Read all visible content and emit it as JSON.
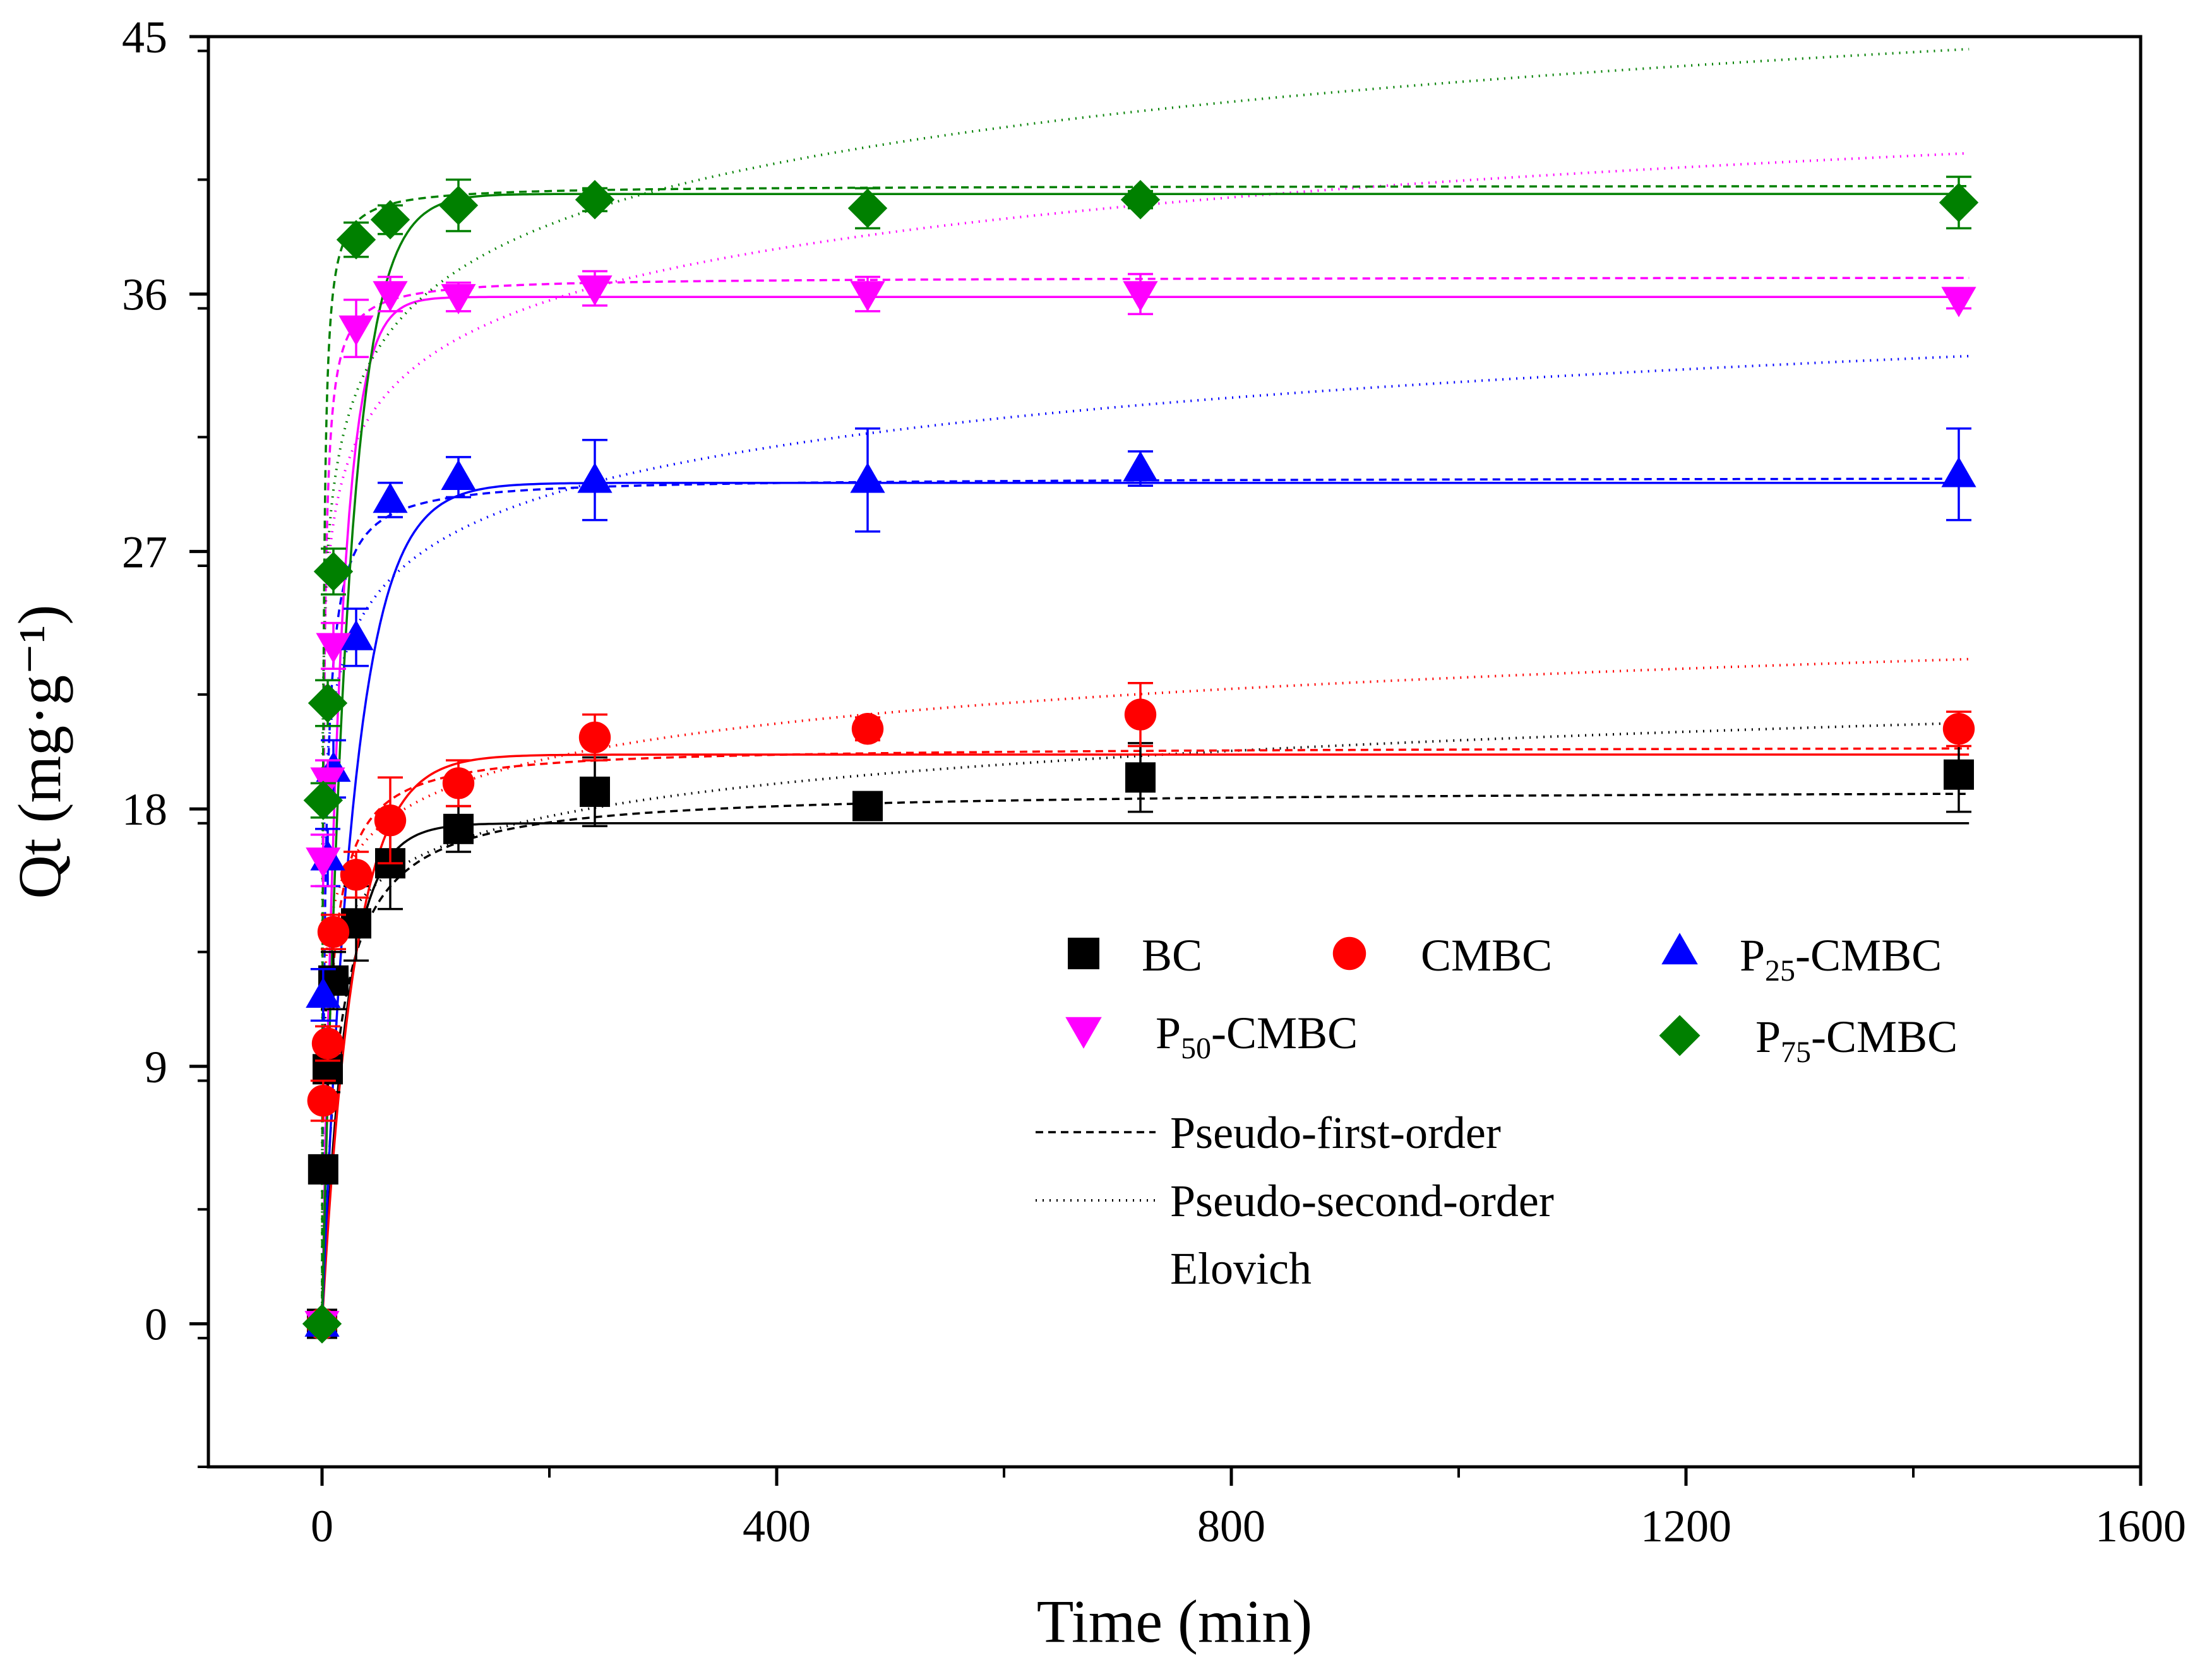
{
  "chart_data": {
    "type": "scatter",
    "title": "",
    "xlabel": "Time (min)",
    "ylabel": "Qt (mg·g⁻¹)",
    "xlim": [
      -100,
      1600
    ],
    "ylim": [
      -5,
      45
    ],
    "xticks": [
      0,
      400,
      800,
      1200,
      1600
    ],
    "yticks": [
      0,
      9,
      18,
      27,
      36,
      45
    ],
    "x": [
      0,
      1,
      5,
      10,
      30,
      60,
      120,
      240,
      480,
      720,
      1440
    ],
    "series": [
      {
        "name": "BC",
        "color": "#000000",
        "marker": "square",
        "values": [
          0,
          5.4,
          8.9,
          12.0,
          14.0,
          16.1,
          17.3,
          18.6,
          18.1,
          19.1,
          19.2
        ],
        "errors": [
          0,
          0.3,
          0.8,
          1.0,
          1.3,
          1.6,
          0.8,
          1.2,
          0.4,
          1.2,
          1.3
        ],
        "fits": {
          "pfo": {
            "qe": 17.5,
            "k": 0.045
          },
          "pso": {
            "qe": 18.7,
            "k": 0.004
          },
          "elovich": {
            "a": 9.0,
            "b": 1.65
          }
        }
      },
      {
        "name": "CMBC",
        "color": "#ff0000",
        "marker": "circle",
        "values": [
          0,
          7.8,
          9.8,
          13.7,
          15.7,
          17.6,
          18.9,
          20.5,
          20.8,
          21.3,
          20.8
        ],
        "errors": [
          0,
          0.7,
          0.6,
          0.6,
          0.8,
          1.5,
          0.8,
          0.8,
          0.4,
          1.1,
          0.6
        ],
        "fits": {
          "pfo": {
            "qe": 19.9,
            "k": 0.035
          },
          "pso": {
            "qe": 20.2,
            "k": 0.008
          },
          "elovich": {
            "a": 10.5,
            "b": 1.75
          }
        }
      },
      {
        "name": "P25-CMBC",
        "color": "#0000ff",
        "marker": "triangle-up",
        "values": [
          0,
          11.5,
          16.3,
          19.4,
          24.0,
          28.8,
          29.6,
          29.5,
          29.5,
          29.9,
          29.7
        ],
        "errors": [
          0,
          0.9,
          1.0,
          1.0,
          1.0,
          0.6,
          0.7,
          1.4,
          1.8,
          0.6,
          1.6
        ],
        "fits": {
          "pfo": {
            "qe": 29.4,
            "k": 0.035
          },
          "pso": {
            "qe": 29.6,
            "k": 0.012
          },
          "elovich": {
            "a": 16.0,
            "b": 2.45
          }
        }
      },
      {
        "name": "P50-CMBC",
        "color": "#ff00ff",
        "marker": "triangle-down",
        "values": [
          0,
          16.2,
          19.0,
          23.7,
          34.8,
          36.0,
          35.9,
          36.2,
          36.0,
          36.0,
          35.8
        ],
        "errors": [
          0,
          0.9,
          0.7,
          0.8,
          1.0,
          0.6,
          0.5,
          0.6,
          0.6,
          0.7,
          0.3
        ],
        "fits": {
          "pfo": {
            "qe": 35.9,
            "k": 0.065
          },
          "pso": {
            "qe": 36.6,
            "k": 0.02
          },
          "elovich": {
            "a": 22.0,
            "b": 2.6
          }
        }
      },
      {
        "name": "P75-CMBC",
        "color": "#008000",
        "marker": "diamond",
        "values": [
          0,
          18.3,
          21.7,
          26.3,
          37.9,
          38.6,
          39.1,
          39.3,
          39.0,
          39.3,
          39.2
        ],
        "errors": [
          0,
          0.6,
          0.8,
          0.8,
          0.6,
          0.5,
          0.9,
          0.4,
          0.7,
          0.3,
          0.9
        ],
        "fits": {
          "pfo": {
            "qe": 39.5,
            "k": 0.045
          },
          "pso": {
            "qe": 39.8,
            "k": 0.025
          },
          "elovich": {
            "a": 22.0,
            "b": 3.1
          }
        }
      }
    ],
    "legend": {
      "placement": "center-right",
      "markers": [
        {
          "label": "BC",
          "series": 0
        },
        {
          "label": "CMBC",
          "series": 1
        },
        {
          "label": "P25-CMBC",
          "base": "P",
          "sub": "25",
          "rest": "-CMBC",
          "series": 2
        },
        {
          "label": "P50-CMBC",
          "base": "P",
          "sub": "50",
          "rest": "-CMBC",
          "series": 3
        },
        {
          "label": "P75-CMBC",
          "base": "P",
          "sub": "75",
          "rest": "-CMBC",
          "series": 4
        }
      ],
      "lines": [
        {
          "label": "Pseudo-first-order",
          "style": "dashed"
        },
        {
          "label": "Pseudo-second-order",
          "style": "dotted"
        },
        {
          "label": "Elovich",
          "style": "none"
        }
      ]
    }
  }
}
